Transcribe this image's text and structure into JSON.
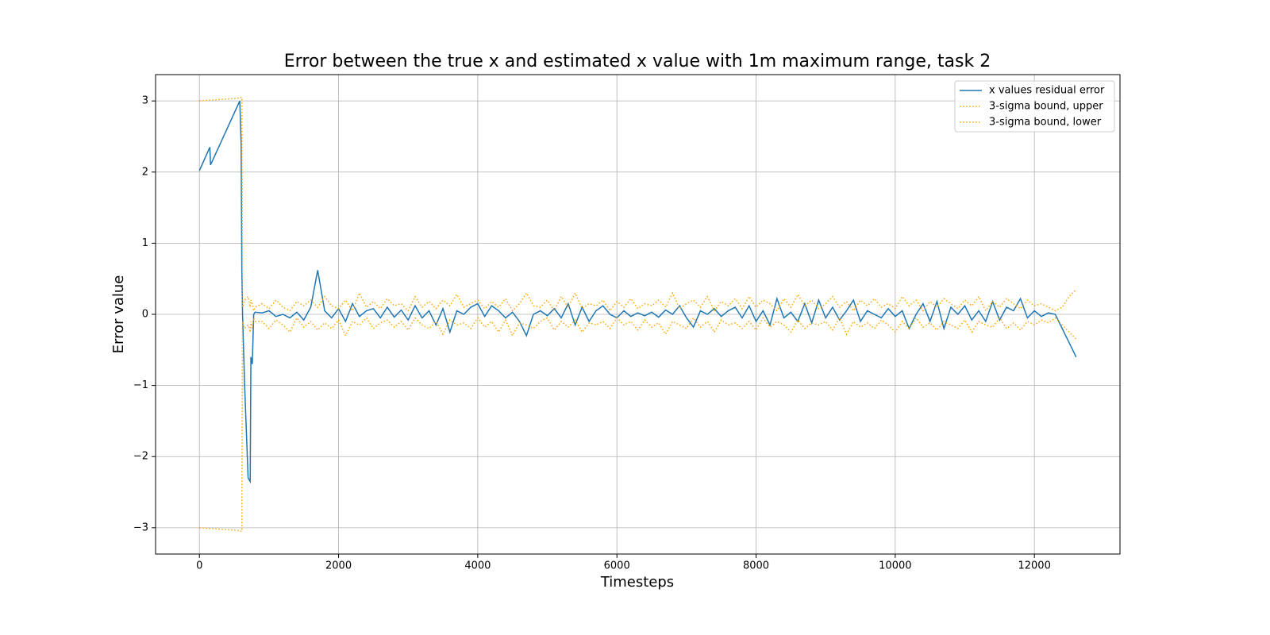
{
  "chart_data": {
    "type": "line",
    "title": "Error between the true x and estimated x value with 1m maximum range, task 2",
    "x_label": "Timesteps",
    "y_label": "Error value",
    "xlim": [
      -630,
      13230
    ],
    "ylim": [
      -3.37,
      3.37
    ],
    "xticks": [
      0,
      2000,
      4000,
      6000,
      8000,
      10000,
      12000
    ],
    "yticks": [
      {
        "value": -3,
        "label": "−3"
      },
      {
        "value": -2,
        "label": "−2"
      },
      {
        "value": -1,
        "label": "−1"
      },
      0,
      1,
      2,
      3
    ],
    "grid": true,
    "legend": "upper right",
    "x": [
      0,
      150,
      160,
      580,
      600,
      610,
      620,
      650,
      700,
      730,
      740,
      760,
      780,
      800,
      900,
      1000,
      1100,
      1200,
      1300,
      1400,
      1500,
      1600,
      1700,
      1800,
      1900,
      2000,
      2100,
      2200,
      2300,
      2400,
      2500,
      2600,
      2700,
      2800,
      2900,
      3000,
      3100,
      3200,
      3300,
      3400,
      3500,
      3600,
      3700,
      3800,
      3900,
      4000,
      4100,
      4200,
      4300,
      4400,
      4500,
      4600,
      4700,
      4800,
      4900,
      5000,
      5100,
      5200,
      5300,
      5400,
      5500,
      5600,
      5700,
      5800,
      5900,
      6000,
      6100,
      6200,
      6300,
      6400,
      6500,
      6600,
      6700,
      6800,
      6900,
      7000,
      7100,
      7200,
      7300,
      7400,
      7500,
      7600,
      7700,
      7800,
      7900,
      8000,
      8100,
      8200,
      8300,
      8400,
      8500,
      8600,
      8700,
      8800,
      8900,
      9000,
      9100,
      9200,
      9300,
      9400,
      9500,
      9600,
      9700,
      9800,
      9900,
      10000,
      10100,
      10200,
      10300,
      10400,
      10500,
      10600,
      10700,
      10800,
      10900,
      11000,
      11100,
      11200,
      11300,
      11400,
      11500,
      11600,
      11700,
      11800,
      11900,
      12000,
      12100,
      12200,
      12300,
      12400,
      12500,
      12600
    ],
    "series": [
      {
        "name": "x values residual error",
        "color": "#1f77b4",
        "linestyle": "solid",
        "values": [
          2.02,
          2.35,
          2.1,
          3.0,
          2.4,
          0.6,
          0.0,
          -1.0,
          -2.3,
          -2.35,
          -0.6,
          -0.7,
          0.0,
          0.03,
          0.02,
          0.05,
          -0.03,
          0.0,
          -0.05,
          0.03,
          -0.08,
          0.1,
          0.62,
          0.05,
          -0.05,
          0.08,
          -0.1,
          0.15,
          -0.03,
          0.05,
          0.08,
          -0.05,
          0.1,
          -0.04,
          0.06,
          -0.08,
          0.12,
          -0.05,
          0.05,
          -0.15,
          0.08,
          -0.25,
          0.05,
          0.0,
          0.1,
          0.15,
          -0.03,
          0.12,
          0.05,
          -0.05,
          0.03,
          -0.1,
          -0.3,
          0.0,
          0.05,
          -0.02,
          0.08,
          -0.05,
          0.15,
          -0.15,
          0.1,
          -0.1,
          0.05,
          0.12,
          0.0,
          -0.05,
          0.05,
          -0.03,
          0.02,
          -0.02,
          0.03,
          -0.04,
          0.06,
          0.0,
          0.12,
          -0.05,
          -0.18,
          0.05,
          0.0,
          0.08,
          -0.03,
          0.05,
          0.1,
          -0.05,
          0.12,
          -0.1,
          0.05,
          -0.15,
          0.22,
          -0.05,
          0.03,
          -0.1,
          0.15,
          -0.12,
          0.2,
          -0.05,
          0.1,
          -0.08,
          0.05,
          0.2,
          -0.1,
          0.05,
          0.0,
          -0.05,
          0.08,
          -0.03,
          0.05,
          -0.2,
          0.0,
          0.15,
          -0.1,
          0.18,
          -0.2,
          0.1,
          0.0,
          0.12,
          -0.08,
          0.05,
          -0.1,
          0.18,
          -0.08,
          0.1,
          0.05,
          0.22,
          -0.05,
          0.05,
          -0.03,
          0.02,
          0.0,
          -0.2,
          -0.4,
          -0.6
        ]
      },
      {
        "name": "3-sigma bound, upper",
        "color": "#ffa500",
        "linestyle": "dotted",
        "values": [
          3.0,
          3.01,
          3.01,
          3.04,
          3.05,
          3.05,
          0.1,
          0.2,
          0.25,
          0.1,
          0.2,
          0.15,
          0.05,
          0.1,
          0.15,
          0.08,
          0.2,
          0.1,
          0.05,
          0.18,
          0.12,
          0.2,
          0.1,
          0.25,
          0.12,
          0.08,
          0.2,
          0.05,
          0.3,
          0.1,
          0.18,
          0.08,
          0.22,
          0.12,
          0.15,
          0.05,
          0.25,
          0.1,
          0.18,
          0.08,
          0.2,
          0.12,
          0.28,
          0.1,
          0.15,
          0.2,
          0.08,
          0.18,
          0.1,
          0.22,
          0.05,
          0.15,
          0.3,
          0.12,
          0.1,
          0.2,
          0.05,
          0.25,
          0.1,
          0.3,
          0.08,
          0.15,
          0.12,
          0.2,
          0.05,
          0.18,
          0.1,
          0.22,
          0.08,
          0.15,
          0.12,
          0.2,
          0.1,
          0.3,
          0.08,
          0.15,
          0.2,
          0.1,
          0.25,
          0.05,
          0.18,
          0.12,
          0.22,
          0.08,
          0.25,
          0.1,
          0.2,
          0.15,
          0.05,
          0.22,
          0.1,
          0.28,
          0.12,
          0.2,
          0.08,
          0.15,
          0.25,
          0.1,
          0.18,
          0.05,
          0.2,
          0.12,
          0.22,
          0.1,
          0.15,
          0.08,
          0.25,
          0.12,
          0.2,
          0.05,
          0.18,
          0.1,
          0.22,
          0.15,
          0.08,
          0.2,
          0.12,
          0.25,
          0.05,
          0.18,
          0.1,
          0.22,
          0.15,
          0.08,
          0.2,
          0.12,
          0.15,
          0.1,
          0.05,
          0.1,
          0.25,
          0.35
        ]
      },
      {
        "name": "3-sigma bound, lower",
        "color": "#ffa500",
        "linestyle": "dotted",
        "values": [
          -3.0,
          -3.01,
          -3.01,
          -3.04,
          -3.05,
          -3.05,
          -0.1,
          -0.2,
          -0.15,
          -0.25,
          -0.1,
          -0.2,
          -0.05,
          -0.1,
          -0.1,
          -0.2,
          -0.08,
          -0.15,
          -0.25,
          -0.05,
          -0.18,
          -0.1,
          -0.22,
          -0.12,
          -0.2,
          -0.08,
          -0.3,
          -0.1,
          -0.15,
          -0.05,
          -0.2,
          -0.12,
          -0.08,
          -0.18,
          -0.1,
          -0.22,
          -0.05,
          -0.15,
          -0.2,
          -0.1,
          -0.28,
          -0.08,
          -0.15,
          -0.12,
          -0.2,
          -0.05,
          -0.18,
          -0.1,
          -0.25,
          -0.08,
          -0.3,
          -0.12,
          -0.15,
          -0.2,
          -0.1,
          -0.05,
          -0.22,
          -0.1,
          -0.18,
          -0.08,
          -0.25,
          -0.12,
          -0.15,
          -0.1,
          -0.2,
          -0.05,
          -0.15,
          -0.1,
          -0.22,
          -0.08,
          -0.18,
          -0.12,
          -0.28,
          -0.1,
          -0.15,
          -0.2,
          -0.05,
          -0.18,
          -0.1,
          -0.25,
          -0.08,
          -0.15,
          -0.12,
          -0.2,
          -0.1,
          -0.22,
          -0.05,
          -0.18,
          -0.1,
          -0.15,
          -0.25,
          -0.08,
          -0.2,
          -0.12,
          -0.15,
          -0.1,
          -0.22,
          -0.05,
          -0.28,
          -0.1,
          -0.18,
          -0.12,
          -0.2,
          -0.08,
          -0.15,
          -0.25,
          -0.1,
          -0.2,
          -0.05,
          -0.18,
          -0.12,
          -0.22,
          -0.1,
          -0.15,
          -0.2,
          -0.08,
          -0.25,
          -0.1,
          -0.15,
          -0.18,
          -0.05,
          -0.2,
          -0.12,
          -0.22,
          -0.1,
          -0.15,
          -0.08,
          -0.12,
          -0.05,
          -0.15,
          -0.25,
          -0.35
        ]
      }
    ]
  }
}
